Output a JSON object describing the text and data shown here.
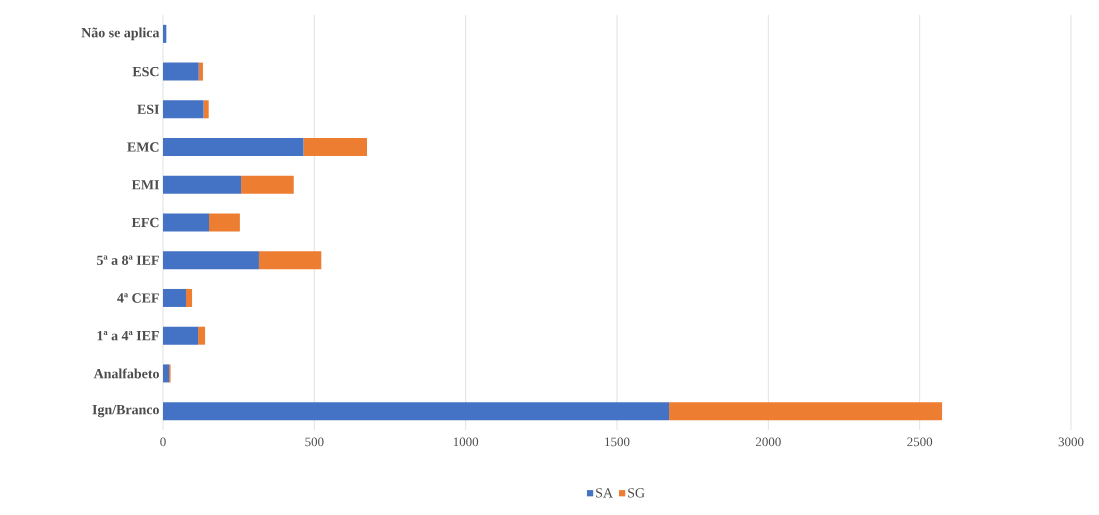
{
  "chart_data": {
    "type": "bar",
    "orientation": "horizontal",
    "stacked": true,
    "categories": [
      "Não se aplica",
      "ESC",
      "ESI",
      "EMC",
      "EMI",
      "EFC",
      "5ª a 8ª IEF",
      "4ª CEF",
      "1ª a 4ª IEF",
      "Analfabeto",
      "Ign/Branco"
    ],
    "series": [
      {
        "name": "SA",
        "color": "#4472c4",
        "values": [
          11,
          118,
          134,
          464,
          258,
          152,
          317,
          76,
          116,
          20,
          1672
        ]
      },
      {
        "name": "SG",
        "color": "#ed7d31",
        "values": [
          0,
          14,
          17,
          210,
          174,
          102,
          206,
          20,
          23,
          5,
          902
        ]
      }
    ],
    "xlim": [
      0,
      3000
    ],
    "xticks": [
      0,
      500,
      1000,
      1500,
      2000,
      2500,
      3000
    ],
    "grid": "x",
    "legend": "bottom"
  }
}
